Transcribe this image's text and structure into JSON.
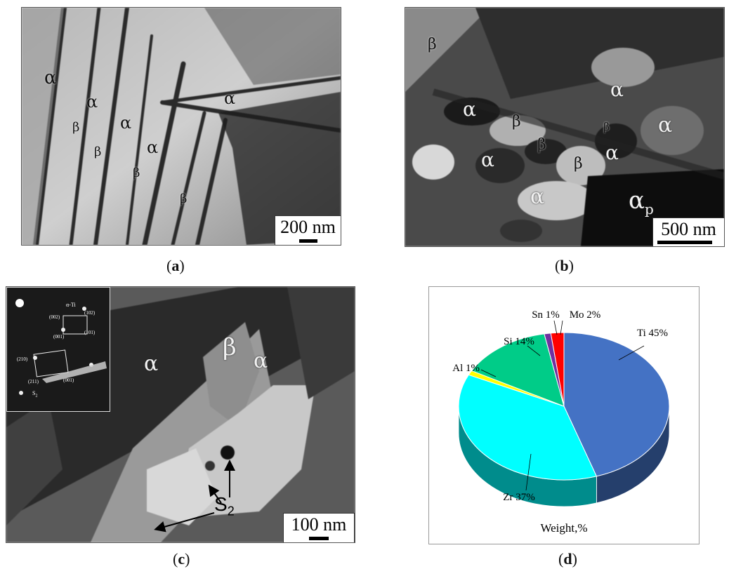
{
  "panels": {
    "a": {
      "caption_label": "a",
      "scale_text": "200 nm",
      "phase_labels": [
        "α",
        "α",
        "α",
        "α",
        "α",
        "β",
        "β",
        "β",
        "β"
      ]
    },
    "b": {
      "caption_label": "b",
      "scale_text": "500 nm",
      "phase_labels": [
        "β",
        "α",
        "α",
        "α",
        "α",
        "α",
        "β",
        "β",
        "β",
        "β",
        "α"
      ],
      "alpha_p": "α",
      "alpha_p_sub": "p"
    },
    "c": {
      "caption_label": "c",
      "scale_text": "100 nm",
      "phase_labels": [
        "α",
        "β",
        "α"
      ],
      "arrow_label": "S",
      "arrow_label_sub": "2",
      "inset": {
        "title": "α-Ti",
        "spots": [
          "(002)",
          "(102)",
          "(001)",
          "(101)",
          "(210)",
          "(211)",
          "(001)"
        ],
        "s_label": "S",
        "s_label_sub": "2"
      }
    },
    "d": {
      "caption_label": "d"
    }
  },
  "chart_data": {
    "type": "pie",
    "title": "",
    "xlabel": "Weight,%",
    "categories": [
      "Ti",
      "Zr",
      "Al",
      "Si",
      "Sn",
      "Mo"
    ],
    "values": [
      45,
      37,
      1,
      14,
      1,
      2
    ],
    "labels": [
      "Ti 45%",
      "Zr 37%",
      "Al 1%",
      "Si 14%",
      "Sn 1%",
      "Mo 2%"
    ],
    "colors": [
      "#4472C4",
      "#00FFFF",
      "#FFFF00",
      "#00CC88",
      "#7030A0",
      "#FF0000"
    ],
    "style": "3d"
  }
}
